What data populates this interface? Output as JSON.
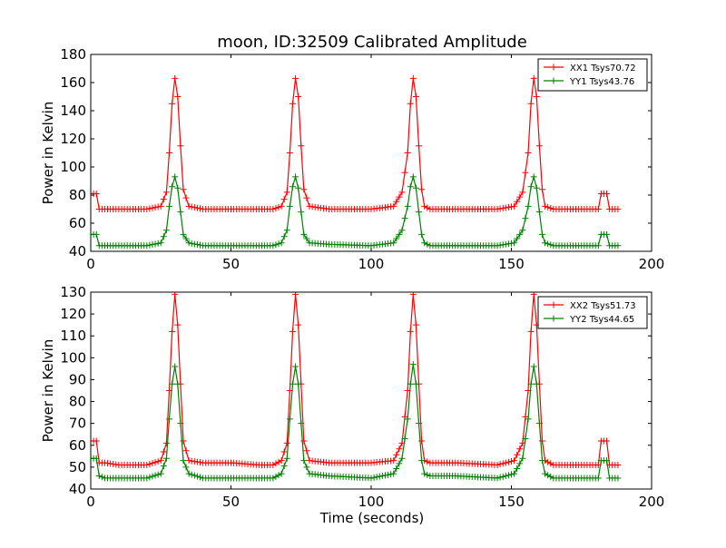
{
  "figure": {
    "title": "moon, ID:32509 Calibrated Amplitude",
    "xlabel": "Time (seconds)"
  },
  "colors": {
    "xx": "#ff0000",
    "yy": "#008000",
    "axes": "#000000",
    "background": "#ffffff"
  },
  "chart_data": [
    {
      "type": "line",
      "title": "moon, ID:32509 Calibrated Amplitude",
      "xlabel": "",
      "ylabel": "Power in Kelvin",
      "xlim": [
        0,
        200
      ],
      "ylim": [
        40,
        180
      ],
      "xticks": [
        0,
        50,
        100,
        150,
        200
      ],
      "yticks": [
        40,
        60,
        80,
        100,
        120,
        140,
        160,
        180
      ],
      "grid": false,
      "legend_position": "top-right",
      "series": [
        {
          "name": "XX1 Tsys70.72",
          "color": "#ff0000",
          "marker": "+",
          "x": [
            0,
            2,
            3,
            5,
            10,
            20,
            25,
            27,
            28,
            29,
            30,
            31,
            32,
            33,
            35,
            40,
            50,
            60,
            65,
            68,
            70,
            71,
            72,
            73,
            74,
            75,
            76,
            78,
            85,
            100,
            108,
            111,
            113,
            114,
            115,
            116,
            117,
            118,
            119,
            121,
            130,
            145,
            151,
            154,
            156,
            157,
            158,
            159,
            160,
            161,
            162,
            165,
            175,
            181,
            182,
            183,
            184,
            185,
            186,
            188
          ],
          "y": [
            81,
            81,
            70,
            70,
            70,
            70,
            72,
            82,
            110,
            145,
            163,
            150,
            115,
            84,
            72,
            70,
            70,
            70,
            70,
            72,
            82,
            110,
            145,
            163,
            150,
            115,
            84,
            72,
            70,
            70,
            72,
            82,
            110,
            145,
            163,
            150,
            115,
            84,
            72,
            70,
            70,
            70,
            72,
            82,
            110,
            145,
            163,
            150,
            115,
            84,
            72,
            70,
            70,
            70,
            81,
            81,
            81,
            70,
            70,
            70
          ]
        },
        {
          "name": "YY1 Tsys43.76",
          "color": "#008000",
          "marker": "+",
          "x": [
            0,
            2,
            3,
            5,
            10,
            20,
            25,
            27,
            28,
            29,
            30,
            31,
            32,
            33,
            35,
            40,
            50,
            60,
            65,
            68,
            70,
            71,
            72,
            73,
            74,
            75,
            76,
            78,
            85,
            100,
            108,
            111,
            113,
            114,
            115,
            116,
            117,
            118,
            119,
            121,
            130,
            145,
            151,
            154,
            156,
            157,
            158,
            159,
            160,
            161,
            162,
            165,
            175,
            181,
            182,
            183,
            184,
            185,
            186,
            188
          ],
          "y": [
            52,
            52,
            44,
            44,
            44,
            44,
            46,
            55,
            72,
            86,
            93,
            85,
            68,
            52,
            46,
            44,
            44,
            44,
            44,
            46,
            55,
            72,
            86,
            93,
            85,
            68,
            52,
            46,
            45,
            44,
            46,
            55,
            72,
            86,
            93,
            85,
            68,
            52,
            46,
            44,
            44,
            44,
            46,
            55,
            72,
            86,
            93,
            85,
            68,
            52,
            46,
            44,
            44,
            44,
            52,
            52,
            52,
            44,
            44,
            44
          ]
        }
      ]
    },
    {
      "type": "line",
      "title": "",
      "xlabel": "Time (seconds)",
      "ylabel": "Power in Kelvin",
      "xlim": [
        0,
        200
      ],
      "ylim": [
        40,
        130
      ],
      "xticks": [
        0,
        50,
        100,
        150,
        200
      ],
      "yticks": [
        40,
        50,
        60,
        70,
        80,
        90,
        100,
        110,
        120,
        130
      ],
      "grid": false,
      "legend_position": "top-right",
      "series": [
        {
          "name": "XX2 Tsys51.73",
          "color": "#ff0000",
          "marker": "+",
          "x": [
            0,
            2,
            3,
            5,
            10,
            20,
            25,
            27,
            28,
            29,
            30,
            31,
            32,
            33,
            35,
            40,
            50,
            60,
            65,
            68,
            70,
            71,
            72,
            73,
            74,
            75,
            76,
            78,
            85,
            100,
            108,
            111,
            113,
            114,
            115,
            116,
            117,
            118,
            119,
            121,
            130,
            145,
            151,
            154,
            156,
            157,
            158,
            159,
            160,
            161,
            162,
            165,
            175,
            181,
            182,
            183,
            184,
            185,
            186,
            188
          ],
          "y": [
            62,
            62,
            52,
            52,
            51,
            51,
            53,
            61,
            85,
            112,
            129,
            115,
            88,
            62,
            53,
            52,
            52,
            51,
            51,
            53,
            61,
            85,
            112,
            129,
            115,
            88,
            62,
            53,
            52,
            52,
            53,
            61,
            85,
            112,
            129,
            115,
            88,
            62,
            53,
            52,
            52,
            51,
            53,
            61,
            85,
            112,
            129,
            115,
            88,
            62,
            53,
            51,
            51,
            51,
            62,
            62,
            62,
            51,
            51,
            51
          ]
        },
        {
          "name": "YY2 Tsys44.65",
          "color": "#008000",
          "marker": "+",
          "x": [
            0,
            2,
            3,
            5,
            10,
            20,
            25,
            27,
            28,
            29,
            30,
            31,
            32,
            33,
            35,
            40,
            50,
            60,
            65,
            68,
            70,
            71,
            72,
            73,
            74,
            75,
            76,
            78,
            85,
            100,
            108,
            111,
            113,
            114,
            115,
            116,
            117,
            118,
            119,
            121,
            130,
            145,
            151,
            154,
            156,
            157,
            158,
            159,
            160,
            161,
            162,
            165,
            175,
            181,
            182,
            183,
            184,
            185,
            186,
            188
          ],
          "y": [
            54,
            54,
            46,
            45,
            45,
            45,
            47,
            54,
            72,
            88,
            96,
            88,
            70,
            53,
            47,
            45,
            45,
            45,
            45,
            47,
            54,
            72,
            88,
            96,
            88,
            70,
            53,
            47,
            46,
            45,
            47,
            54,
            72,
            88,
            97,
            88,
            70,
            53,
            47,
            46,
            46,
            45,
            47,
            54,
            72,
            88,
            96,
            88,
            70,
            53,
            47,
            45,
            45,
            45,
            53,
            53,
            53,
            45,
            45,
            45
          ]
        }
      ]
    }
  ]
}
